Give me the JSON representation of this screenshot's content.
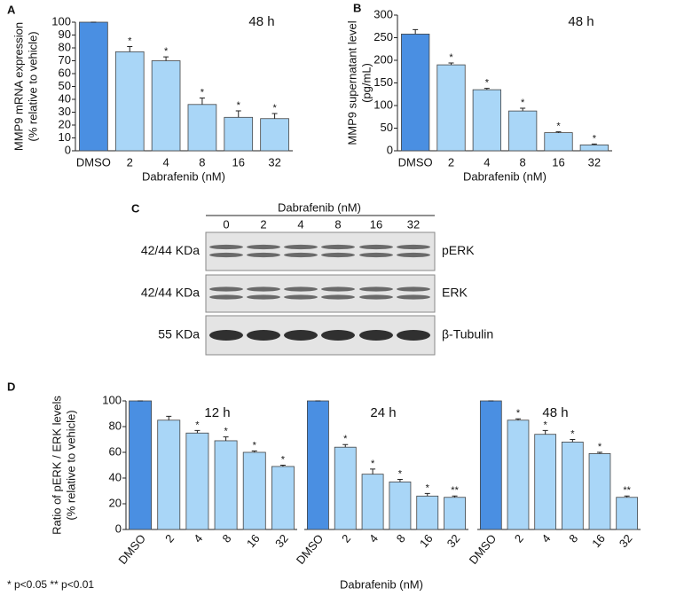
{
  "panel_labels": [
    "A",
    "B",
    "C",
    "D"
  ],
  "chart_data": [
    {
      "type": "bar",
      "annotation": "48 h",
      "ylabel": [
        "MMP9 mRNA expression",
        "(% relative to vehicle)"
      ],
      "xlabel": "Dabrafenib (nM)",
      "categories": [
        "DMSO",
        "2",
        "4",
        "8",
        "16",
        "32"
      ],
      "values": [
        100,
        77,
        70,
        36,
        26,
        25
      ],
      "errors": [
        0,
        4,
        3,
        5,
        5,
        4
      ],
      "significance": [
        null,
        "*",
        "*",
        "*",
        "*",
        "*"
      ],
      "colors": [
        "#4a8fe2",
        "#a9d6f7",
        "#a9d6f7",
        "#a9d6f7",
        "#a9d6f7",
        "#a9d6f7"
      ],
      "ylim": [
        0,
        100
      ],
      "yticks": [
        0,
        10,
        20,
        30,
        40,
        50,
        60,
        70,
        80,
        90,
        100
      ]
    },
    {
      "type": "bar",
      "annotation": "48 h",
      "ylabel": [
        "MMP9 supernatant level",
        "(pg/mL)"
      ],
      "xlabel": "Dabrafenib (nM)",
      "categories": [
        "DMSO",
        "2",
        "4",
        "8",
        "16",
        "32"
      ],
      "values": [
        258,
        190,
        135,
        88,
        40,
        13
      ],
      "errors": [
        10,
        4,
        3,
        6,
        2,
        2
      ],
      "significance": [
        null,
        "*",
        "*",
        "*",
        "*",
        "*"
      ],
      "colors": [
        "#4a8fe2",
        "#a9d6f7",
        "#a9d6f7",
        "#a9d6f7",
        "#a9d6f7",
        "#a9d6f7"
      ],
      "ylim": [
        0,
        300
      ],
      "yticks": [
        0,
        50,
        100,
        150,
        200,
        250,
        300
      ]
    },
    {
      "type": "bar",
      "annotation": "12 h",
      "ylabel": [
        "Ratio of pERK / ERK levels",
        "(% relative to vehicle)"
      ],
      "categories": [
        "DMSO",
        "2",
        "4",
        "8",
        "16",
        "32"
      ],
      "values": [
        100,
        85,
        75,
        69,
        60,
        49
      ],
      "errors": [
        0,
        3,
        2,
        3,
        1,
        1
      ],
      "significance": [
        null,
        null,
        "*",
        "*",
        "*",
        "*"
      ],
      "colors": [
        "#4a8fe2",
        "#a9d6f7",
        "#a9d6f7",
        "#a9d6f7",
        "#a9d6f7",
        "#a9d6f7"
      ],
      "ylim": [
        0,
        100
      ],
      "yticks": [
        0,
        20,
        40,
        60,
        80,
        100
      ]
    },
    {
      "type": "bar",
      "annotation": "24 h",
      "xlabel": "Dabrafenib (nM)",
      "categories": [
        "DMSO",
        "2",
        "4",
        "8",
        "16",
        "32"
      ],
      "values": [
        100,
        64,
        43,
        37,
        26,
        25
      ],
      "errors": [
        0,
        2,
        4,
        2,
        2,
        1
      ],
      "significance": [
        null,
        "*",
        "*",
        "*",
        "*",
        "**"
      ],
      "colors": [
        "#4a8fe2",
        "#a9d6f7",
        "#a9d6f7",
        "#a9d6f7",
        "#a9d6f7",
        "#a9d6f7"
      ],
      "ylim": [
        0,
        100
      ]
    },
    {
      "type": "bar",
      "annotation": "48 h",
      "categories": [
        "DMSO",
        "2",
        "4",
        "8",
        "16",
        "32"
      ],
      "values": [
        100,
        85,
        74,
        68,
        59,
        25
      ],
      "errors": [
        0,
        1,
        3,
        2,
        1,
        1
      ],
      "significance": [
        null,
        "*",
        "*",
        "*",
        "*",
        "**"
      ],
      "colors": [
        "#4a8fe2",
        "#a9d6f7",
        "#a9d6f7",
        "#a9d6f7",
        "#a9d6f7",
        "#a9d6f7"
      ],
      "ylim": [
        0,
        100
      ]
    }
  ],
  "blot": {
    "title": "Dabrafenib (nM)",
    "lanes": [
      "0",
      "2",
      "4",
      "8",
      "16",
      "32"
    ],
    "rows": [
      {
        "size": "42/44 KDa",
        "protein": "pERK"
      },
      {
        "size": "42/44 KDa",
        "protein": "ERK"
      },
      {
        "size": "55 KDa",
        "protein": "β-Tubulin"
      }
    ]
  },
  "footnote": "* p<0.05 ** p<0.01"
}
